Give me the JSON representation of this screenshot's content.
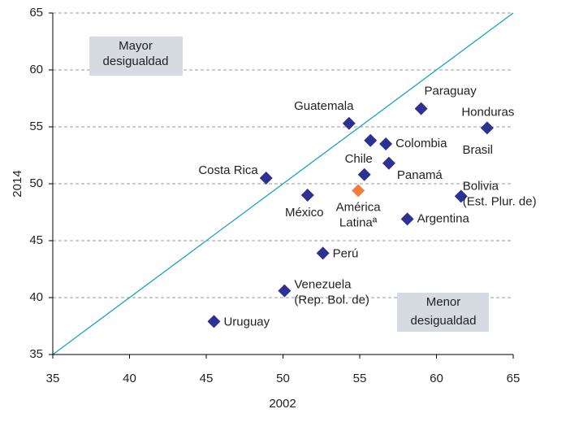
{
  "chart_data": {
    "type": "scatter",
    "xlabel": "2002",
    "ylabel": "2014",
    "xlim": [
      35,
      65
    ],
    "ylim": [
      35,
      65
    ],
    "xticks": [
      35,
      40,
      45,
      50,
      55,
      60,
      65
    ],
    "yticks": [
      35,
      40,
      45,
      50,
      55,
      60,
      65
    ],
    "grid": true,
    "labels": [
      [
        "Paraguay"
      ],
      [
        "Honduras"
      ],
      [
        "Guatemala"
      ],
      [
        "Brasil"
      ],
      [
        "Colombia"
      ],
      [
        "Chile"
      ],
      [
        "Panamá"
      ],
      [
        "Costa Rica"
      ],
      [
        "México"
      ],
      [
        "América",
        "Latinaª"
      ],
      [
        "Bolivia",
        "(Est. Plur. de)"
      ],
      [
        "Argentina"
      ],
      [
        "Perú"
      ],
      [
        "Venezuela",
        "(Rep. Bol. de)"
      ],
      [
        "Uruguay"
      ]
    ],
    "x": [
      59.0,
      63.3,
      54.3,
      55.7,
      56.7,
      55.3,
      56.9,
      48.9,
      51.6,
      54.9,
      61.6,
      58.1,
      52.6,
      50.1,
      45.5
    ],
    "y": [
      56.6,
      54.9,
      55.3,
      53.8,
      53.5,
      50.8,
      51.8,
      50.5,
      49.0,
      49.4,
      48.9,
      46.9,
      43.9,
      40.6,
      37.9
    ],
    "colors": [
      "#2e3192",
      "#2e3192",
      "#2e3192",
      "#2e3192",
      "#2e3192",
      "#2e3192",
      "#2e3192",
      "#2e3192",
      "#2e3192",
      "#f07f3c",
      "#2e3192",
      "#2e3192",
      "#2e3192",
      "#2e3192",
      "#2e3192"
    ],
    "reference_line": {
      "x": [
        35,
        65
      ],
      "y": [
        35,
        65
      ],
      "color": "#1aa3c4"
    },
    "annotations": [
      [
        "Mayor",
        "desigualdad"
      ],
      [
        "Menor",
        "desigualdad"
      ]
    ]
  }
}
